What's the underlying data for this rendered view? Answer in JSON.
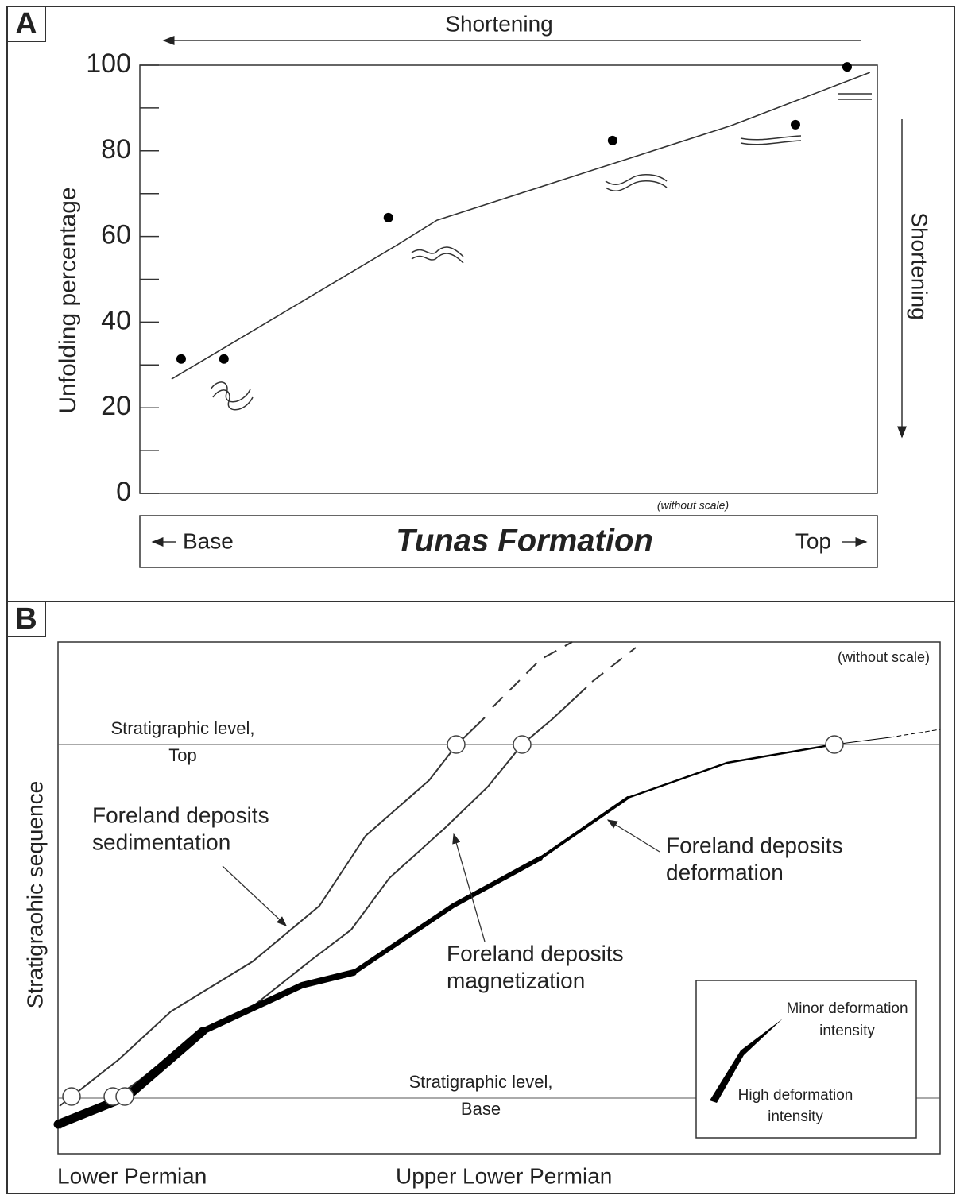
{
  "chart_data": {
    "type": "scatter",
    "panel": "A",
    "top_arrow_label": "Shortening",
    "right_arrow_label": "Shortening",
    "ylabel": "Unfolding percentage",
    "note": "(without scale)",
    "xlabel": "Tunas Formation",
    "x_start_label": "Base",
    "x_end_label": "Top",
    "xlim": [
      0,
      100
    ],
    "ylim": [
      0,
      100
    ],
    "yticks": [
      0,
      20,
      40,
      60,
      80,
      100
    ],
    "minor_yticks": [
      10,
      30,
      50,
      70,
      90
    ],
    "series": [
      {
        "style": "points",
        "color": "#000000",
        "x": [
          5.6,
          11.4,
          33.7,
          64.1,
          88.9,
          95.9
        ],
        "values": [
          31.4,
          31.4,
          64.4,
          82.4,
          86.1,
          99.6
        ]
      },
      {
        "style": "line",
        "color": "#333333",
        "x": [
          4.3,
          34.6,
          40.3,
          80.2,
          99.0
        ],
        "values": [
          26.7,
          57.7,
          63.8,
          85.9,
          98.3
        ]
      }
    ]
  },
  "diagram": {
    "panel": "B",
    "note": "(without scale)",
    "top_level": [
      "Stratigraphic level,",
      "Top"
    ],
    "base_level": [
      "Stratigraphic level,",
      "Base"
    ],
    "sedimentation": [
      "Foreland deposits",
      "sedimentation"
    ],
    "deformation": [
      "Foreland deposits",
      "deformation"
    ],
    "magnetization": [
      "Foreland deposits",
      "magnetization"
    ],
    "legend": {
      "minor": [
        "Minor deformation",
        "intensity"
      ],
      "high": [
        "High deformation",
        "intensity"
      ]
    },
    "ylabel": "Stratigraohic sequence",
    "x_left": "Lower Permian",
    "x_mid": "Upper Lower Permian"
  }
}
